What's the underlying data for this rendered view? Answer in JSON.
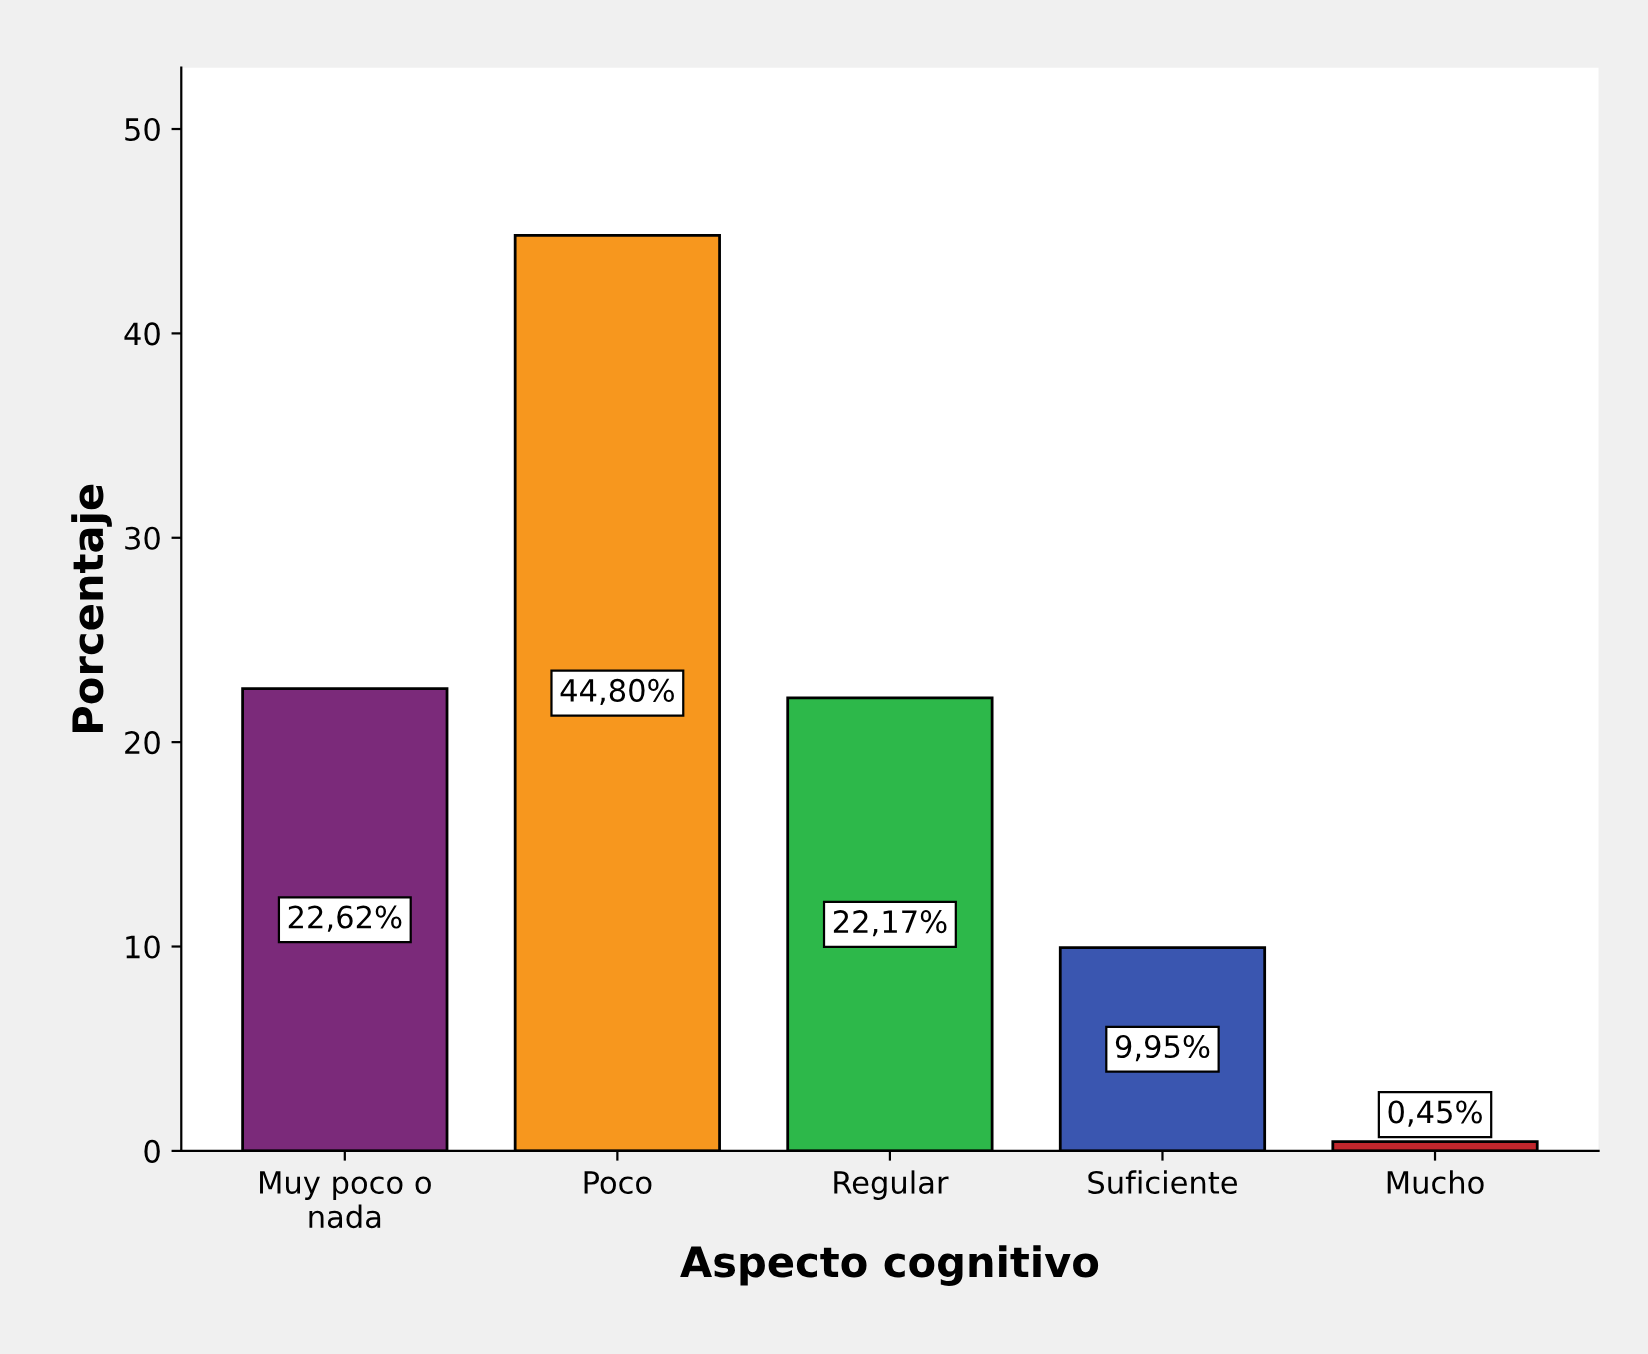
{
  "chart_data": {
    "type": "bar",
    "xlabel": "Aspecto cognitivo",
    "ylabel": "Porcentaje",
    "categories": [
      "Muy poco o\nnada",
      "Poco",
      "Regular",
      "Suficiente",
      "Mucho"
    ],
    "values": [
      22.62,
      44.8,
      22.17,
      9.95,
      0.45
    ],
    "colors": [
      "#7b2a7a",
      "#f7971e",
      "#2db84a",
      "#3a56b0",
      "#c0262c"
    ],
    "value_labels": [
      "22,62%",
      "44,80%",
      "22,17%",
      "9,95%",
      "0,45%"
    ],
    "ylim": [
      0,
      53
    ],
    "yticks": [
      0,
      10,
      20,
      30,
      40,
      50
    ],
    "grid": false,
    "legend": false
  }
}
